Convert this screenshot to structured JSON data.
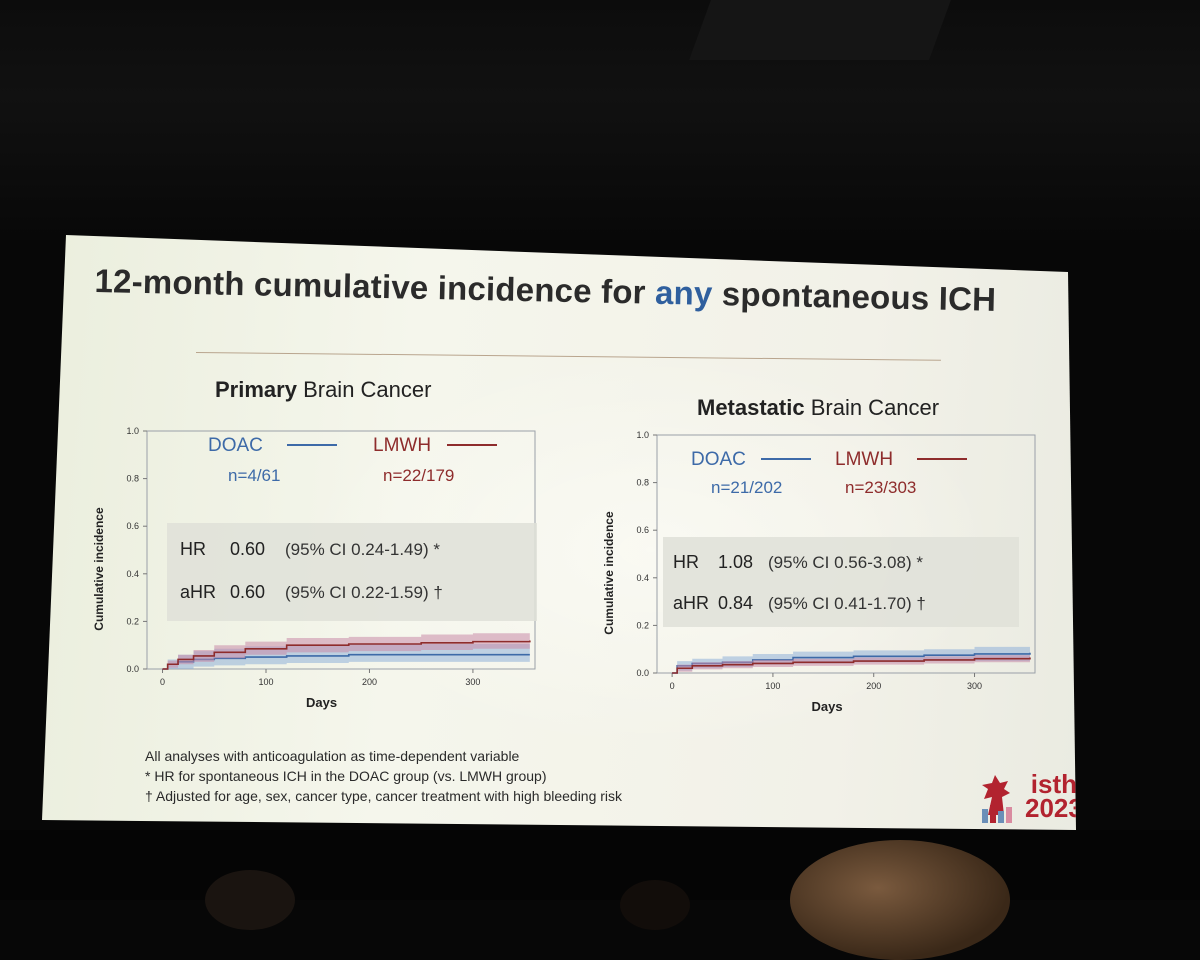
{
  "slide": {
    "title_before": "12-month cumulative incidence for ",
    "title_emph": "any",
    "title_after": " spontaneous ICH",
    "footnotes": [
      "All analyses with anticoagulation as time-dependent variable",
      "* HR for spontaneous ICH in the DOAC group (vs. LMWH group)",
      "† Adjusted for age, sex, cancer type, cancer treatment with high bleeding risk"
    ],
    "logo": {
      "line1": "isth",
      "line2": "2023"
    }
  },
  "colors": {
    "doac": "#3d6aa8",
    "lmwh": "#8e2c2c",
    "doac_band": "#8fb0d8",
    "lmwh_band": "#c88aa8",
    "title_accent": "#2f5f9e"
  },
  "chart_data": [
    {
      "type": "line",
      "panel_bold": "Primary",
      "panel_rest": " Brain Cancer",
      "xlabel": "Days",
      "ylabel": "Cumulative incidence",
      "xlim": [
        -15,
        360
      ],
      "ylim": [
        0,
        1.0
      ],
      "x_ticks": [
        0,
        100,
        200,
        300
      ],
      "y_ticks": [
        "0.0",
        "0.2",
        "0.4",
        "0.6",
        "0.8",
        "1.0"
      ],
      "legend": [
        {
          "label": "DOAC",
          "n": "n=4/61"
        },
        {
          "label": "LMWH",
          "n": "n=22/179"
        }
      ],
      "stats": [
        {
          "label": "HR",
          "value": "0.60",
          "ci": "(95% CI 0.24-1.49) *"
        },
        {
          "label": "aHR",
          "value": "0.60",
          "ci": "(95% CI 0.22-1.59) †"
        }
      ],
      "series": [
        {
          "name": "DOAC",
          "x": [
            0,
            5,
            15,
            30,
            50,
            80,
            120,
            180,
            250,
            300,
            355
          ],
          "y": [
            0.0,
            0.02,
            0.03,
            0.04,
            0.045,
            0.05,
            0.055,
            0.06,
            0.06,
            0.06,
            0.06
          ],
          "lo": [
            0.0,
            0.0,
            0.0,
            0.01,
            0.015,
            0.02,
            0.025,
            0.03,
            0.03,
            0.03,
            0.03
          ],
          "hi": [
            0.0,
            0.04,
            0.06,
            0.075,
            0.085,
            0.095,
            0.1,
            0.105,
            0.105,
            0.105,
            0.105
          ]
        },
        {
          "name": "LMWH",
          "x": [
            0,
            5,
            15,
            30,
            50,
            80,
            120,
            180,
            250,
            300,
            355
          ],
          "y": [
            0.0,
            0.02,
            0.04,
            0.055,
            0.07,
            0.085,
            0.1,
            0.105,
            0.11,
            0.115,
            0.12
          ],
          "lo": [
            0.0,
            0.005,
            0.02,
            0.03,
            0.045,
            0.06,
            0.07,
            0.075,
            0.08,
            0.085,
            0.085
          ],
          "hi": [
            0.0,
            0.035,
            0.06,
            0.08,
            0.1,
            0.115,
            0.13,
            0.135,
            0.145,
            0.15,
            0.16
          ]
        }
      ]
    },
    {
      "type": "line",
      "panel_bold": "Metastatic",
      "panel_rest": " Brain Cancer",
      "xlabel": "Days",
      "ylabel": "Cumulative incidence",
      "xlim": [
        -15,
        360
      ],
      "ylim": [
        0,
        1.0
      ],
      "x_ticks": [
        0,
        100,
        200,
        300
      ],
      "y_ticks": [
        "0.0",
        "0.2",
        "0.4",
        "0.6",
        "0.8",
        "1.0"
      ],
      "legend": [
        {
          "label": "DOAC",
          "n": "n=21/202"
        },
        {
          "label": "LMWH",
          "n": "n=23/303"
        }
      ],
      "stats": [
        {
          "label": "HR",
          "value": "1.08",
          "ci": "(95% CI 0.56-3.08) *"
        },
        {
          "label": "aHR",
          "value": "0.84",
          "ci": "(95% CI  0.41-1.70) †"
        }
      ],
      "series": [
        {
          "name": "DOAC",
          "x": [
            0,
            5,
            20,
            50,
            80,
            120,
            180,
            250,
            300,
            355
          ],
          "y": [
            0.0,
            0.03,
            0.04,
            0.045,
            0.055,
            0.065,
            0.07,
            0.075,
            0.08,
            0.085
          ],
          "lo": [
            0.0,
            0.01,
            0.02,
            0.025,
            0.035,
            0.04,
            0.045,
            0.05,
            0.05,
            0.05
          ],
          "hi": [
            0.0,
            0.05,
            0.06,
            0.07,
            0.08,
            0.09,
            0.095,
            0.1,
            0.11,
            0.12
          ]
        },
        {
          "name": "LMWH",
          "x": [
            0,
            5,
            20,
            50,
            80,
            120,
            180,
            250,
            300,
            355
          ],
          "y": [
            0.0,
            0.02,
            0.03,
            0.035,
            0.04,
            0.045,
            0.05,
            0.055,
            0.06,
            0.065
          ],
          "lo": [
            0.0,
            0.005,
            0.015,
            0.02,
            0.025,
            0.03,
            0.035,
            0.04,
            0.045,
            0.045
          ],
          "hi": [
            0.0,
            0.035,
            0.045,
            0.05,
            0.055,
            0.06,
            0.065,
            0.07,
            0.075,
            0.085
          ]
        }
      ]
    }
  ]
}
